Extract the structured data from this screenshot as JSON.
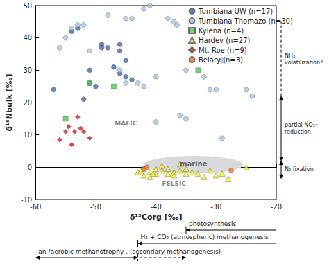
{
  "chart_data": {
    "type": "scatter",
    "x_label": "δ¹³Corg [‰]",
    "y_label": "δ¹⁵Nbulk [‰]",
    "xlim": [
      -60,
      -20
    ],
    "ylim": [
      -10,
      50
    ],
    "xticks": [
      -60,
      -50,
      -40,
      -30,
      -20
    ],
    "yticks": [
      -10,
      0,
      10,
      20,
      30,
      40,
      50
    ],
    "grid": false,
    "legend": "upper right",
    "series": [
      {
        "name": "Tumbiana UW (n=17)",
        "color": "#3d68b3",
        "marker": "circle",
        "x": [
          -57,
          -54,
          -53,
          -51,
          -51,
          -49,
          -49,
          -48,
          -46,
          -46,
          -46,
          -45,
          -45,
          -44,
          -52,
          -50,
          -47
        ],
        "values": [
          24,
          42,
          43,
          30,
          26,
          38,
          37,
          37,
          38,
          36,
          29,
          28,
          33,
          27,
          21,
          25,
          31
        ]
      },
      {
        "name": "Tumbiana Thomazo (n=30)",
        "color": "#a9c5e8",
        "marker": "circle",
        "x": [
          -56,
          -55,
          -54,
          -53,
          -52,
          -51,
          -48,
          -45,
          -44,
          -42,
          -41,
          -38,
          -37,
          -36.5,
          -46,
          -45,
          -43,
          -42,
          -40,
          -40,
          -36,
          -35,
          -35,
          -32,
          -31,
          -30,
          -29,
          -29,
          -25,
          -24
        ],
        "values": [
          37,
          40,
          43,
          44,
          44,
          36,
          47,
          46,
          46,
          49,
          50,
          46,
          45,
          44,
          30,
          26,
          26,
          25,
          28,
          14,
          16,
          15,
          30,
          28,
          24,
          24,
          33,
          9,
          24,
          22
        ]
      },
      {
        "name": "Kylena (n=4)",
        "color": "#4cc94c",
        "marker": "square",
        "x": [
          -55,
          -51,
          -47,
          -33
        ],
        "values": [
          15,
          26,
          25,
          30
        ]
      },
      {
        "name": "Hardey (n=27)",
        "color": "#f2f023",
        "marker": "triangle",
        "x": [
          -43,
          -42,
          -42,
          -41,
          -41,
          -40,
          -40,
          -39,
          -39,
          -38,
          -38,
          -37,
          -37,
          -36,
          -36,
          -35,
          -35,
          -34,
          -33,
          -32,
          -31,
          -30,
          -29,
          -28,
          -42.5,
          -40.5,
          -25
        ],
        "values": [
          -1.5,
          -0.5,
          -2.5,
          -1.5,
          -3,
          -0.5,
          -2,
          -1,
          0.5,
          -2,
          -0.5,
          -1.5,
          -2.5,
          1,
          -1,
          -2,
          -0.5,
          -1.5,
          -2,
          -3,
          -1,
          -2.5,
          -2,
          -3.5,
          -1,
          -2,
          0
        ]
      },
      {
        "name": "Mt. Roe (n=9)",
        "color": "#e01414",
        "marker": "diamond",
        "x": [
          -56,
          -55,
          -54.5,
          -54,
          -53,
          -52.5,
          -53.5,
          -52,
          -51
        ],
        "values": [
          8.5,
          11,
          12.5,
          7,
          15.5,
          12,
          11,
          11,
          9
        ]
      },
      {
        "name": "Belary (n=3)",
        "color": "#f27022",
        "marker": "circle",
        "x": [
          -42,
          -41.5,
          -27.5
        ],
        "values": [
          -0.5,
          0,
          -1
        ]
      }
    ],
    "annotations": [
      {
        "text": "MAFIC",
        "x": -45,
        "y": 13.5
      },
      {
        "text": "FELSIC",
        "x": -37,
        "y": -5
      }
    ],
    "region": {
      "text": "marine",
      "x": [
        -42,
        -25.5
      ],
      "y": [
        -2,
        3.5
      ]
    },
    "y_processes": [
      {
        "text": [
          "NH₃",
          "volatilization?"
        ],
        "y": [
          22,
          45
        ],
        "line_style": "dashed"
      },
      {
        "text": [
          "partial NO₃⁻",
          "reduction"
        ],
        "y": [
          2,
          22
        ],
        "line_style": "solid"
      },
      {
        "text": [
          "N₂ fixation"
        ],
        "y": [
          -3.5,
          2
        ],
        "line_style": "solid"
      }
    ],
    "x_processes": [
      {
        "text": "photosynthesis",
        "x": [
          -35,
          -20
        ],
        "line_style": "solid"
      },
      {
        "text": "H₂ + CO₂ (atmospheric) methanogenesis",
        "x": [
          -43,
          -20
        ],
        "line_style": "solid"
      },
      {
        "text": "an-/aerobic methanotrophy , (secondary methanogenesis)",
        "x": [
          -60,
          -43
        ],
        "line_style": "solid",
        "dashed_x": [
          -43,
          -35
        ]
      }
    ]
  }
}
